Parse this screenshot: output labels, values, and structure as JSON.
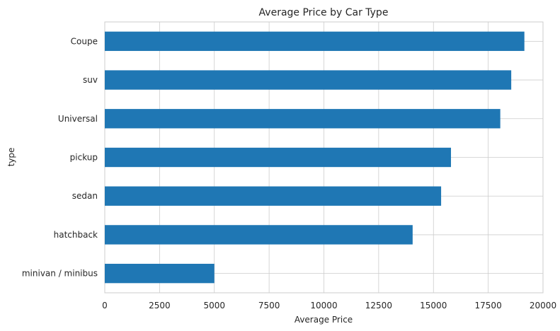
{
  "chart_data": {
    "type": "bar",
    "orientation": "horizontal",
    "title": "Average Price by Car Type",
    "xlabel": "Average Price",
    "ylabel": "type",
    "categories": [
      "minivan / minibus",
      "hatchback",
      "sedan",
      "pickup",
      "Universal",
      "suv",
      "Coupe"
    ],
    "values": [
      5000,
      14050,
      15350,
      15800,
      18050,
      18550,
      19150
    ],
    "xlim": [
      0,
      20000
    ],
    "xticks": [
      0,
      2500,
      5000,
      7500,
      10000,
      12500,
      15000,
      17500,
      20000
    ],
    "grid": true,
    "bar_color": "#1f77b4"
  }
}
